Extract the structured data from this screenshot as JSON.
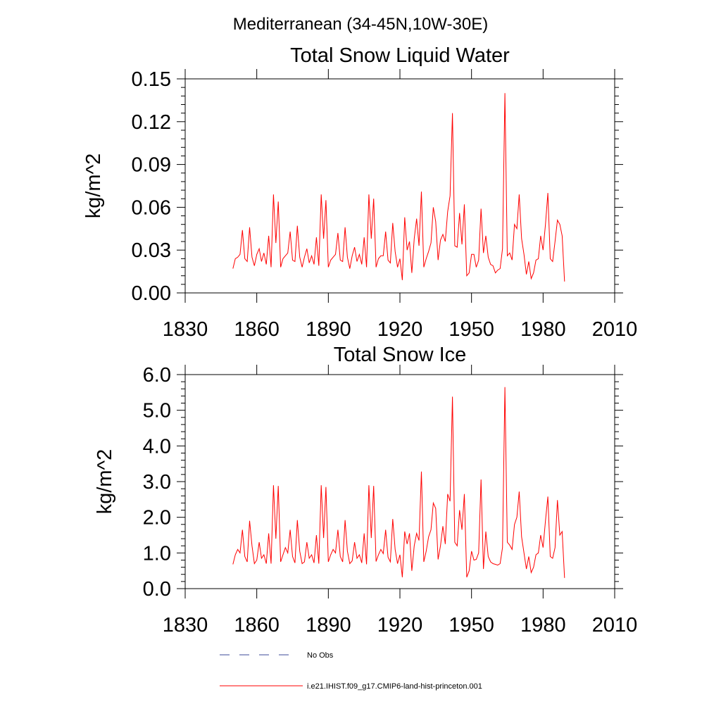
{
  "figure_title": "Mediterranean (34-45N,10W-30E)",
  "legend": [
    {
      "label": "No Obs",
      "color": "#3b4a9a",
      "style": "dashed"
    },
    {
      "label": "i.e21.IHIST.f09_g17.CMIP6-land-hist-princeton.001",
      "color": "#ff0000",
      "style": "solid"
    }
  ],
  "chart_data": [
    {
      "type": "line",
      "title": "Total Snow Liquid Water",
      "xlabel": "",
      "ylabel": "kg/m^2",
      "xlim": [
        1830,
        2010
      ],
      "ylim": [
        0.0,
        0.15
      ],
      "x_ticks": [
        "1830",
        "1860",
        "1890",
        "1920",
        "1950",
        "1980",
        "2010"
      ],
      "y_ticks": [
        "0.00",
        "0.03",
        "0.06",
        "0.09",
        "0.12",
        "0.15"
      ],
      "grid": false,
      "series": [
        {
          "name": "i.e21.IHIST.f09_g17.CMIP6-land-hist-princeton.001",
          "color": "#ff0000",
          "x": [
            1850,
            1851,
            1852,
            1853,
            1854,
            1855,
            1856,
            1857,
            1858,
            1859,
            1860,
            1861,
            1862,
            1863,
            1864,
            1865,
            1866,
            1867,
            1868,
            1869,
            1870,
            1871,
            1872,
            1873,
            1874,
            1875,
            1876,
            1877,
            1878,
            1879,
            1880,
            1881,
            1882,
            1883,
            1884,
            1885,
            1886,
            1887,
            1888,
            1889,
            1890,
            1891,
            1892,
            1893,
            1894,
            1895,
            1896,
            1897,
            1898,
            1899,
            1900,
            1901,
            1902,
            1903,
            1904,
            1905,
            1906,
            1907,
            1908,
            1909,
            1910,
            1911,
            1912,
            1913,
            1914,
            1915,
            1916,
            1917,
            1918,
            1919,
            1920,
            1921,
            1922,
            1923,
            1924,
            1925,
            1926,
            1927,
            1928,
            1929,
            1930,
            1931,
            1932,
            1933,
            1934,
            1935,
            1936,
            1937,
            1938,
            1939,
            1940,
            1941,
            1942,
            1943,
            1944,
            1945,
            1946,
            1947,
            1948,
            1949,
            1950,
            1951,
            1952,
            1953,
            1954,
            1955,
            1956,
            1957,
            1958,
            1959,
            1960,
            1961,
            1962,
            1963,
            1964,
            1965,
            1966,
            1967,
            1968,
            1969,
            1970,
            1971,
            1972,
            1973,
            1974,
            1975,
            1976,
            1977,
            1978,
            1979,
            1980,
            1981,
            1982,
            1983,
            1984,
            1985,
            1986,
            1987,
            1988,
            1989
          ],
          "values": [
            0.017,
            0.024,
            0.025,
            0.027,
            0.044,
            0.024,
            0.022,
            0.046,
            0.025,
            0.019,
            0.027,
            0.031,
            0.022,
            0.028,
            0.02,
            0.04,
            0.018,
            0.069,
            0.035,
            0.064,
            0.018,
            0.024,
            0.026,
            0.028,
            0.043,
            0.023,
            0.022,
            0.047,
            0.025,
            0.018,
            0.025,
            0.031,
            0.021,
            0.026,
            0.02,
            0.039,
            0.019,
            0.069,
            0.038,
            0.065,
            0.018,
            0.023,
            0.025,
            0.027,
            0.042,
            0.023,
            0.022,
            0.046,
            0.025,
            0.017,
            0.026,
            0.032,
            0.022,
            0.027,
            0.02,
            0.039,
            0.018,
            0.069,
            0.038,
            0.066,
            0.018,
            0.024,
            0.026,
            0.026,
            0.043,
            0.023,
            0.021,
            0.049,
            0.029,
            0.018,
            0.024,
            0.009,
            0.053,
            0.03,
            0.036,
            0.014,
            0.038,
            0.052,
            0.033,
            0.071,
            0.018,
            0.024,
            0.029,
            0.035,
            0.06,
            0.05,
            0.023,
            0.037,
            0.041,
            0.036,
            0.057,
            0.068,
            0.126,
            0.033,
            0.032,
            0.056,
            0.034,
            0.062,
            0.012,
            0.014,
            0.027,
            0.027,
            0.018,
            0.023,
            0.059,
            0.028,
            0.04,
            0.025,
            0.02,
            0.019,
            0.014,
            0.016,
            0.017,
            0.031,
            0.14,
            0.026,
            0.028,
            0.023,
            0.048,
            0.045,
            0.069,
            0.038,
            0.027,
            0.013,
            0.022,
            0.01,
            0.014,
            0.023,
            0.024,
            0.04,
            0.03,
            0.048,
            0.07,
            0.024,
            0.022,
            0.036,
            0.051,
            0.048,
            0.04,
            0.008
          ]
        }
      ]
    },
    {
      "type": "line",
      "title": "Total Snow Ice",
      "xlabel": "",
      "ylabel": "kg/m^2",
      "xlim": [
        1830,
        2010
      ],
      "ylim": [
        0.0,
        6.0
      ],
      "x_ticks": [
        "1830",
        "1860",
        "1890",
        "1920",
        "1950",
        "1980",
        "2010"
      ],
      "y_ticks": [
        "0.0",
        "1.0",
        "2.0",
        "3.0",
        "4.0",
        "5.0",
        "6.0"
      ],
      "grid": false,
      "series": [
        {
          "name": "i.e21.IHIST.f09_g17.CMIP6-land-hist-princeton.001",
          "color": "#ff0000",
          "x": [
            1850,
            1851,
            1852,
            1853,
            1854,
            1855,
            1856,
            1857,
            1858,
            1859,
            1860,
            1861,
            1862,
            1863,
            1864,
            1865,
            1866,
            1867,
            1868,
            1869,
            1870,
            1871,
            1872,
            1873,
            1874,
            1875,
            1876,
            1877,
            1878,
            1879,
            1880,
            1881,
            1882,
            1883,
            1884,
            1885,
            1886,
            1887,
            1888,
            1889,
            1890,
            1891,
            1892,
            1893,
            1894,
            1895,
            1896,
            1897,
            1898,
            1899,
            1900,
            1901,
            1902,
            1903,
            1904,
            1905,
            1906,
            1907,
            1908,
            1909,
            1910,
            1911,
            1912,
            1913,
            1914,
            1915,
            1916,
            1917,
            1918,
            1919,
            1920,
            1921,
            1922,
            1923,
            1924,
            1925,
            1926,
            1927,
            1928,
            1929,
            1930,
            1931,
            1932,
            1933,
            1934,
            1935,
            1936,
            1937,
            1938,
            1939,
            1940,
            1941,
            1942,
            1943,
            1944,
            1945,
            1946,
            1947,
            1948,
            1949,
            1950,
            1951,
            1952,
            1953,
            1954,
            1955,
            1956,
            1957,
            1958,
            1959,
            1960,
            1961,
            1962,
            1963,
            1964,
            1965,
            1966,
            1967,
            1968,
            1969,
            1970,
            1971,
            1972,
            1973,
            1974,
            1975,
            1976,
            1977,
            1978,
            1979,
            1980,
            1981,
            1982,
            1983,
            1984,
            1985,
            1986,
            1987,
            1988,
            1989
          ],
          "values": [
            0.68,
            0.95,
            1.1,
            1.0,
            1.65,
            0.9,
            0.75,
            1.9,
            1.2,
            0.7,
            0.8,
            1.3,
            0.85,
            0.95,
            0.7,
            1.55,
            0.7,
            2.9,
            1.4,
            2.88,
            0.75,
            0.95,
            1.15,
            1.0,
            1.65,
            0.9,
            0.72,
            1.92,
            1.05,
            0.7,
            0.75,
            1.3,
            0.85,
            0.95,
            0.72,
            1.5,
            0.7,
            2.9,
            1.42,
            2.85,
            0.75,
            0.95,
            1.1,
            1.0,
            1.65,
            0.9,
            0.75,
            1.92,
            1.05,
            0.7,
            0.78,
            1.3,
            0.85,
            0.95,
            0.72,
            1.55,
            0.68,
            2.9,
            1.42,
            2.88,
            0.76,
            0.95,
            1.1,
            0.98,
            1.65,
            0.88,
            0.75,
            1.95,
            1.1,
            0.7,
            0.95,
            0.32,
            1.6,
            1.25,
            1.55,
            0.5,
            1.2,
            1.55,
            1.35,
            3.28,
            0.75,
            1.05,
            1.45,
            1.65,
            2.4,
            2.25,
            0.82,
            1.2,
            1.75,
            1.25,
            2.65,
            2.45,
            5.38,
            1.3,
            1.2,
            2.2,
            1.65,
            2.65,
            0.32,
            0.5,
            1.05,
            0.8,
            0.82,
            1.0,
            3.06,
            0.55,
            1.6,
            0.9,
            0.75,
            0.7,
            0.68,
            0.66,
            0.7,
            1.15,
            5.65,
            1.3,
            1.22,
            1.1,
            1.8,
            2.0,
            2.72,
            1.45,
            1.0,
            0.55,
            0.9,
            0.45,
            0.6,
            0.95,
            1.0,
            1.5,
            1.15,
            1.9,
            2.58,
            0.9,
            0.85,
            1.15,
            2.48,
            1.5,
            1.6,
            0.3
          ]
        }
      ]
    }
  ]
}
